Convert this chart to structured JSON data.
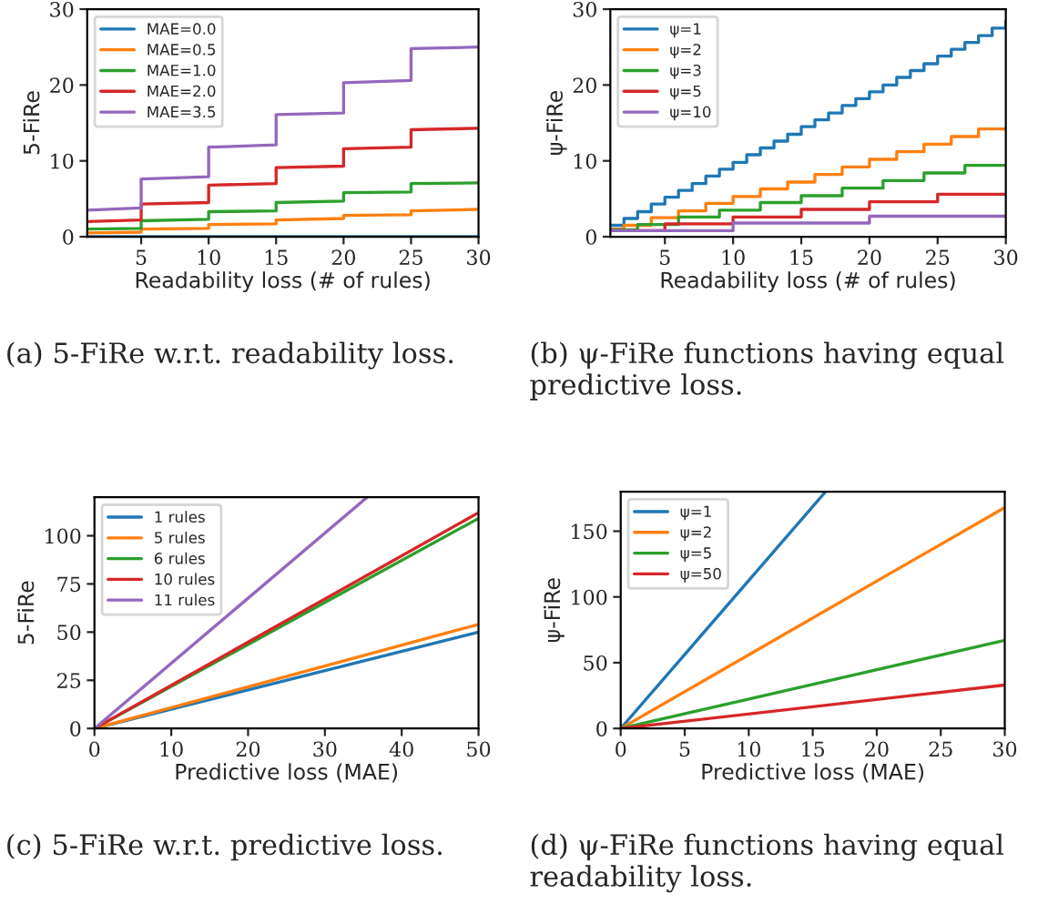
{
  "chart_data": [
    {
      "type": "line",
      "xlabel": "Readability loss (# of rules)",
      "ylabel": "5-FiRe",
      "xlim": [
        1,
        30
      ],
      "xticks": [
        5,
        10,
        15,
        20,
        25,
        30
      ],
      "ylim": [
        0,
        30
      ],
      "yticks": [
        0,
        10,
        20,
        30
      ],
      "legend": "top left",
      "annotations": [
        "(a) 5-FiRe w.r.t. readability loss."
      ],
      "series": [
        {
          "name": "MAE=0.0",
          "color": "#1f77b4",
          "x": [
            1,
            30
          ],
          "values": [
            0,
            0
          ]
        },
        {
          "name": "MAE=0.5",
          "color": "#ff7f0e",
          "x": [
            1,
            5,
            5,
            10,
            10,
            15,
            15,
            20,
            20,
            25,
            25,
            30
          ],
          "values": [
            0.5,
            0.6,
            1.0,
            1.1,
            1.6,
            1.7,
            2.2,
            2.4,
            2.8,
            2.9,
            3.4,
            3.6
          ]
        },
        {
          "name": "MAE=1.0",
          "color": "#2ca02c",
          "x": [
            1,
            5,
            5,
            10,
            10,
            15,
            15,
            20,
            20,
            25,
            25,
            30
          ],
          "values": [
            1.0,
            1.1,
            2.1,
            2.3,
            3.3,
            3.4,
            4.5,
            4.7,
            5.8,
            5.9,
            7.0,
            7.1
          ]
        },
        {
          "name": "MAE=2.0",
          "color": "#d62728",
          "x": [
            1,
            5,
            5,
            10,
            10,
            15,
            15,
            20,
            20,
            25,
            25,
            30
          ],
          "values": [
            2.0,
            2.2,
            4.3,
            4.5,
            6.8,
            7.0,
            9.1,
            9.3,
            11.6,
            11.8,
            14.1,
            14.3
          ]
        },
        {
          "name": "MAE=3.5",
          "color": "#9467bd",
          "x": [
            1,
            5,
            5,
            10,
            10,
            15,
            15,
            20,
            20,
            25,
            25,
            30
          ],
          "values": [
            3.5,
            3.8,
            7.6,
            7.9,
            11.8,
            12.1,
            16.1,
            16.3,
            20.3,
            20.6,
            24.8,
            25.0
          ]
        }
      ]
    },
    {
      "type": "step",
      "xlabel": "Readability loss (# of rules)",
      "ylabel": "ψ-FiRe",
      "xlim": [
        1,
        30
      ],
      "xticks": [
        5,
        10,
        15,
        20,
        25,
        30
      ],
      "ylim": [
        0,
        30
      ],
      "yticks": [
        0,
        10,
        20,
        30
      ],
      "legend": "top left",
      "annotations": [
        "(b) ψ-FiRe functions having equal predictive loss."
      ],
      "series": [
        {
          "name": "ψ=1",
          "color": "#1f77b4",
          "x": [
            1,
            2,
            3,
            4,
            5,
            6,
            7,
            8,
            9,
            10,
            11,
            12,
            13,
            14,
            15,
            16,
            17,
            18,
            19,
            20,
            21,
            22,
            23,
            24,
            25,
            26,
            27,
            28,
            29,
            30
          ],
          "values": [
            1.5,
            2.4,
            3.3,
            4.3,
            5.2,
            6.1,
            7.0,
            8.0,
            8.9,
            9.8,
            10.8,
            11.7,
            12.6,
            13.5,
            14.5,
            15.4,
            16.3,
            17.3,
            18.2,
            19.1,
            20.0,
            21.0,
            21.9,
            22.8,
            23.8,
            24.7,
            25.6,
            26.5,
            27.5,
            28.4
          ]
        },
        {
          "name": "ψ=2",
          "color": "#ff7f0e",
          "x": [
            1,
            2,
            4,
            6,
            8,
            10,
            12,
            14,
            16,
            18,
            20,
            22,
            24,
            26,
            28,
            30
          ],
          "values": [
            1.0,
            1.5,
            2.5,
            3.4,
            4.4,
            5.3,
            6.3,
            7.2,
            8.2,
            9.2,
            10.2,
            11.2,
            12.2,
            13.2,
            14.2,
            14.2
          ]
        },
        {
          "name": "ψ=3",
          "color": "#2ca02c",
          "x": [
            1,
            3,
            6,
            9,
            12,
            15,
            18,
            21,
            24,
            27,
            30
          ],
          "values": [
            0.9,
            1.6,
            2.6,
            3.5,
            4.5,
            5.4,
            6.4,
            7.4,
            8.4,
            9.4,
            9.4
          ]
        },
        {
          "name": "ψ=5",
          "color": "#d62728",
          "x": [
            1,
            5,
            10,
            15,
            20,
            25,
            30
          ],
          "values": [
            0.8,
            1.7,
            2.6,
            3.6,
            4.6,
            5.6,
            5.6
          ]
        },
        {
          "name": "ψ=10",
          "color": "#9467bd",
          "x": [
            1,
            10,
            20,
            30
          ],
          "values": [
            0.8,
            1.8,
            2.7,
            2.7
          ]
        }
      ]
    },
    {
      "type": "line",
      "xlabel": "Predictive loss (MAE)",
      "ylabel": "5-FiRe",
      "xlim": [
        0,
        50
      ],
      "xticks": [
        0,
        10,
        20,
        30,
        40,
        50
      ],
      "ylim": [
        0,
        120
      ],
      "yticks": [
        0,
        25,
        50,
        75,
        100
      ],
      "legend": "top left",
      "annotations": [
        "(c) 5-FiRe w.r.t. predictive loss."
      ],
      "series": [
        {
          "name": "1 rules",
          "color": "#1f77b4",
          "x": [
            0,
            50
          ],
          "values": [
            0,
            50
          ]
        },
        {
          "name": "5 rules",
          "color": "#ff7f0e",
          "x": [
            0,
            50
          ],
          "values": [
            0,
            54
          ]
        },
        {
          "name": "6 rules",
          "color": "#2ca02c",
          "x": [
            0,
            50
          ],
          "values": [
            0,
            109
          ]
        },
        {
          "name": "10 rules",
          "color": "#d62728",
          "x": [
            0,
            50
          ],
          "values": [
            0,
            112
          ]
        },
        {
          "name": "11 rules",
          "color": "#9467bd",
          "x": [
            0,
            35.5
          ],
          "values": [
            0,
            120
          ]
        }
      ]
    },
    {
      "type": "line",
      "xlabel": "Predictive loss (MAE)",
      "ylabel": "ψ-FiRe",
      "xlim": [
        0,
        30
      ],
      "xticks": [
        0,
        5,
        10,
        15,
        20,
        25,
        30
      ],
      "ylim": [
        0,
        180
      ],
      "yticks": [
        0,
        50,
        100,
        150
      ],
      "legend": "top left",
      "annotations": [
        "(d) ψ-FiRe functions having equal readability loss."
      ],
      "series": [
        {
          "name": "ψ=1",
          "color": "#1f77b4",
          "x": [
            0,
            16
          ],
          "values": [
            0,
            180
          ]
        },
        {
          "name": "ψ=2",
          "color": "#ff7f0e",
          "x": [
            0,
            30
          ],
          "values": [
            0,
            168
          ]
        },
        {
          "name": "ψ=5",
          "color": "#2ca02c",
          "x": [
            0,
            30
          ],
          "values": [
            0,
            67
          ]
        },
        {
          "name": "ψ=50",
          "color": "#d62728",
          "x": [
            0,
            30
          ],
          "values": [
            0,
            33
          ]
        }
      ]
    }
  ]
}
